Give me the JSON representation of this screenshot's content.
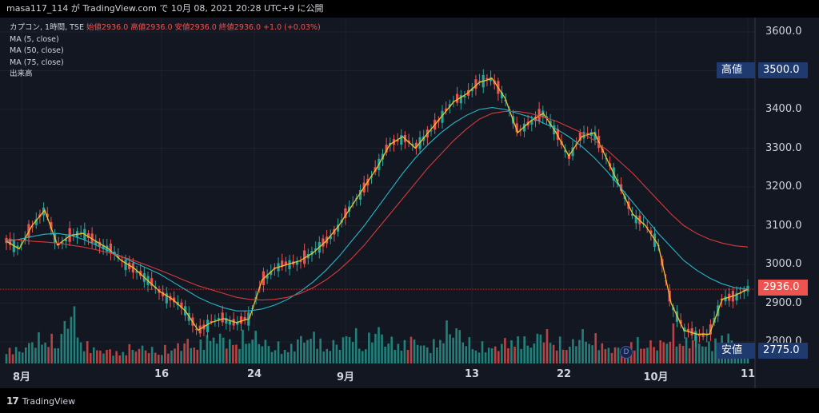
{
  "header": {
    "publish_text": "masa117_114 が TradingView.com で 10月 08, 2021 20:28 UTC+9 に公開"
  },
  "legend": {
    "symbol": "カプコン, 1時間, TSE",
    "ohlc": "始値2936.0 高値2936.0 安値2936.0 終値2936.0 +1.0 (+0.03%)",
    "ma1": "MA (5, close)",
    "ma2": "MA (50, close)",
    "ma3": "MA (75, close)",
    "volume": "出来高"
  },
  "labels": {
    "high_label": "高値",
    "high_value": "3500.0",
    "low_label": "安値",
    "low_value": "2775.0",
    "last_value": "2936.0",
    "dividend_marker": "D"
  },
  "footer": {
    "brand": "TradingView",
    "mark": "17"
  },
  "colors": {
    "background": "#131722",
    "up": "#26a69a",
    "down": "#ef5350",
    "ma5": "#f0c22c",
    "ma50": "#26b5c8",
    "ma75": "#d63a3a",
    "label_bg": "#1e3a6e",
    "last_bg": "#ef5350"
  },
  "chart_data": {
    "type": "line",
    "interval": "1 hour",
    "ylim": [
      2775,
      3630
    ],
    "yticks": [
      "3600.0",
      "3500.0",
      "3400.0",
      "3300.0",
      "3200.0",
      "3100.0",
      "3000.0",
      "2900.0",
      "2800.0"
    ],
    "xticks": [
      "8月",
      "16",
      "24",
      "9月",
      "13",
      "22",
      "10月",
      "11"
    ],
    "series": [
      {
        "name": "MA (5, close)",
        "values": [
          3060,
          3040,
          3100,
          3140,
          3050,
          3075,
          3080,
          3060,
          3040,
          3010,
          2990,
          2960,
          2930,
          2910,
          2880,
          2830,
          2850,
          2860,
          2850,
          2860,
          2960,
          2990,
          3000,
          3010,
          3030,
          3060,
          3100,
          3150,
          3200,
          3250,
          3310,
          3330,
          3300,
          3340,
          3380,
          3420,
          3440,
          3470,
          3480,
          3430,
          3340,
          3370,
          3390,
          3340,
          3280,
          3330,
          3340,
          3270,
          3200,
          3130,
          3100,
          3050,
          2900,
          2830,
          2820,
          2820,
          2910,
          2920,
          2936
        ]
      },
      {
        "name": "MA (50, close)",
        "values": [
          3060,
          3065,
          3072,
          3078,
          3080,
          3075,
          3065,
          3050,
          3035,
          3020,
          3005,
          2990,
          2975,
          2955,
          2935,
          2915,
          2900,
          2888,
          2880,
          2880,
          2885,
          2895,
          2910,
          2930,
          2955,
          2985,
          3020,
          3060,
          3100,
          3145,
          3190,
          3235,
          3275,
          3310,
          3340,
          3365,
          3385,
          3400,
          3405,
          3400,
          3390,
          3380,
          3365,
          3350,
          3330,
          3305,
          3275,
          3240,
          3200,
          3160,
          3120,
          3080,
          3045,
          3010,
          2985,
          2965,
          2950,
          2940,
          2936
        ]
      },
      {
        "name": "MA (75, close)",
        "values": [
          3065,
          3063,
          3060,
          3058,
          3055,
          3050,
          3045,
          3038,
          3030,
          3020,
          3010,
          2998,
          2985,
          2972,
          2958,
          2945,
          2935,
          2925,
          2915,
          2910,
          2908,
          2910,
          2915,
          2925,
          2940,
          2960,
          2985,
          3015,
          3050,
          3090,
          3130,
          3170,
          3210,
          3250,
          3285,
          3320,
          3350,
          3375,
          3390,
          3395,
          3395,
          3390,
          3380,
          3370,
          3355,
          3340,
          3320,
          3295,
          3265,
          3235,
          3200,
          3165,
          3130,
          3100,
          3080,
          3065,
          3055,
          3048,
          3045
        ]
      }
    ],
    "volume": [
      22,
      18,
      30,
      40,
      25,
      80,
      28,
      20,
      18,
      15,
      25,
      20,
      18,
      22,
      30,
      25,
      40,
      35,
      28,
      45,
      30,
      25,
      20,
      35,
      40,
      22,
      30,
      45,
      25,
      50,
      30,
      28,
      35,
      20,
      40,
      55,
      30,
      25,
      22,
      30,
      35,
      28,
      45,
      30,
      25,
      40,
      35,
      22,
      20,
      30,
      28,
      25,
      45,
      30,
      35,
      25,
      40,
      30,
      20
    ]
  }
}
